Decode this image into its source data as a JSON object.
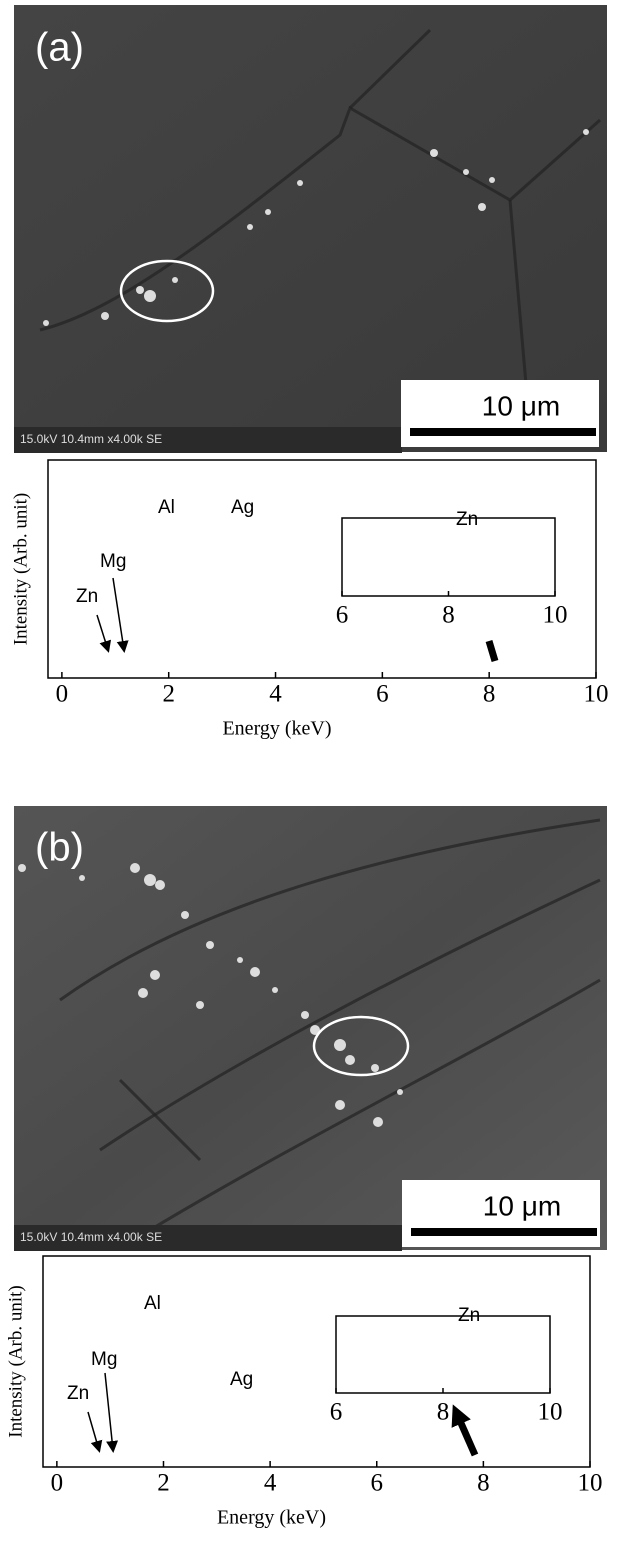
{
  "figures": [
    {
      "label": "(a)",
      "sem": {
        "info": "15.0kV 10.4mm x4.00k SE",
        "scale_bar": "10 μm"
      },
      "spectrum": {
        "x_label": "Energy (keV)",
        "y_label": "Intensity (Arb. unit)",
        "xlim": [
          -0.26,
          10
        ],
        "xticks": [
          0,
          2,
          4,
          6,
          8,
          10
        ],
        "peaks": [
          "Al",
          "Ag",
          "Mg",
          "Zn"
        ],
        "inset": {
          "xlim": [
            6,
            10
          ],
          "xticks": [
            6,
            8,
            10
          ],
          "peaks": [
            "Zn"
          ]
        }
      }
    },
    {
      "label": "(b)",
      "sem": {
        "info": "15.0kV 10.4mm x4.00k SE",
        "scale_bar": "10 μm"
      },
      "spectrum": {
        "x_label": "Energy (keV)",
        "y_label": "Intensity (Arb. unit)",
        "xlim": [
          -0.26,
          10
        ],
        "xticks": [
          0,
          2,
          4,
          6,
          8,
          10
        ],
        "peaks": [
          "Al",
          "Ag",
          "Mg",
          "Zn"
        ],
        "inset": {
          "xlim": [
            6,
            10
          ],
          "xticks": [
            6,
            8,
            10
          ],
          "peaks": [
            "Zn"
          ]
        }
      }
    }
  ]
}
